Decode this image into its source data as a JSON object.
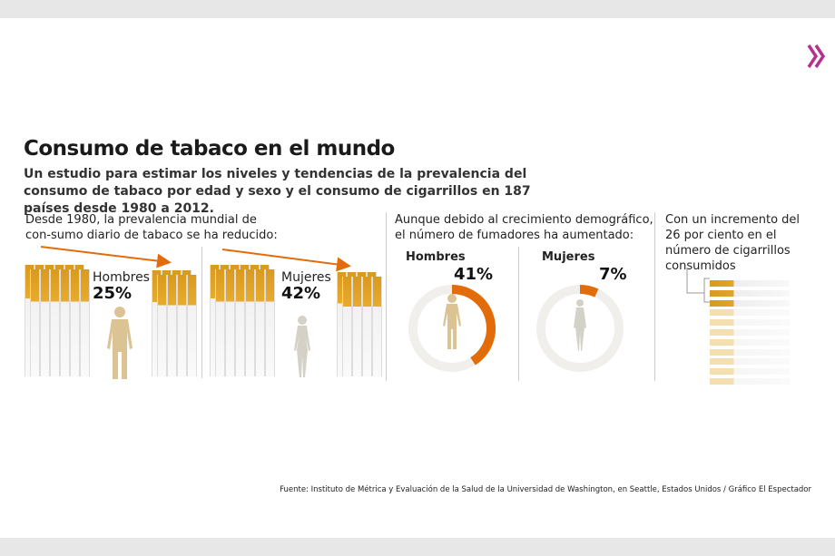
{
  "title": "Consumo de tabaco en el mundo",
  "subtitle": "Un estudio para estimar los niveles y tendencias de la prevalencia del consumo de tabaco por edad y sexo y el consumo de cigarrillos en 187 países desde 1980 a 2012.",
  "section1": {
    "text": "Desde 1980, la prevalencia mundial de con-sumo diario de tabaco se ha reducido:",
    "men_label": "Hombres",
    "men_pct": "25%",
    "women_label": "Mujeres",
    "women_pct": "42%"
  },
  "section2": {
    "text": "Aunque debido al crecimiento demográfico, el número de fumadores ha aumentado:",
    "men_label": "Hombres",
    "men_pct": "41%",
    "women_label": "Mujeres",
    "women_pct": "7%"
  },
  "section3": {
    "text": "Con un incremento del 26 por ciento en el número de cigarrillos consumidos"
  },
  "source": "Fuente: Instituto de Métrica y Evaluación de la Salud de la Universidad de Washington, en Seattle, Estados Unidos / Gráfico El Espectador",
  "colors": {
    "accent": "#e36c0a",
    "filter": "#d99a1e",
    "figure_men": "#dcc394",
    "figure_women": "#d6d1c6",
    "ring": "#f1efec",
    "brand": "#b5308f"
  },
  "icons": {
    "next": "double-chevron-right-icon"
  },
  "chart_data": [
    {
      "type": "pie",
      "subtype": "donut",
      "name": "Hombres",
      "values": [
        41
      ],
      "unit": "%",
      "label": "41%"
    },
    {
      "type": "pie",
      "subtype": "donut",
      "name": "Mujeres",
      "values": [
        7
      ],
      "unit": "%",
      "label": "7%"
    }
  ]
}
